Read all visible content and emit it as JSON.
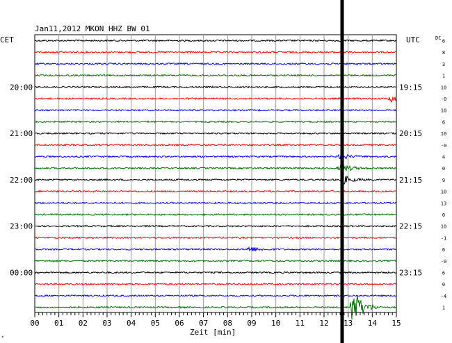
{
  "chart_data": {
    "type": "line",
    "title": "Jan11,2012   MKON HHZ BW 01",
    "left_axis_label": "CET",
    "right_axis_label": "UTC",
    "dc_label": "DC",
    "xlabel": "Zeit [min]",
    "xlim": [
      0,
      15
    ],
    "x_ticks": [
      "00",
      "01",
      "02",
      "03",
      "04",
      "05",
      "06",
      "07",
      "08",
      "09",
      "10",
      "11",
      "12",
      "13",
      "14",
      "15"
    ],
    "trace_colors": [
      "#000000",
      "#ff0000",
      "#0000ff",
      "#007000"
    ],
    "traces_count": 24,
    "left_time_labels": [
      {
        "trace": 4,
        "label": "20:00"
      },
      {
        "trace": 8,
        "label": "21:00"
      },
      {
        "trace": 12,
        "label": "22:00"
      },
      {
        "trace": 16,
        "label": "23:00"
      },
      {
        "trace": 20,
        "label": "00:00"
      }
    ],
    "right_time_labels": [
      {
        "trace": 4,
        "label": "19:15"
      },
      {
        "trace": 8,
        "label": "20:15"
      },
      {
        "trace": 12,
        "label": "21:15"
      },
      {
        "trace": 16,
        "label": "22:15"
      },
      {
        "trace": 20,
        "label": "23:15"
      }
    ],
    "dc_values": [
      "6",
      "8",
      "3",
      "1",
      "10",
      "-0",
      "10",
      "6",
      "10",
      "-0",
      "4",
      "0",
      "9",
      "10",
      "13",
      "0",
      "10",
      "-1",
      "6",
      "-0",
      "6",
      "0",
      "-4",
      "1"
    ],
    "vertical_marker_minute": 12.75,
    "events": [
      {
        "trace": 5,
        "minute": 14.8,
        "amplitude": 5
      },
      {
        "trace": 10,
        "minute": 12.7,
        "amplitude": 4
      },
      {
        "trace": 11,
        "minute": 12.7,
        "amplitude": 8
      },
      {
        "trace": 12,
        "minute": 12.75,
        "amplitude": 7
      },
      {
        "trace": 18,
        "minute": 8.9,
        "amplitude": 4
      },
      {
        "trace": 23,
        "minute": 13.2,
        "amplitude": 30
      }
    ],
    "grid": true,
    "bottom_left_mark": "*"
  }
}
